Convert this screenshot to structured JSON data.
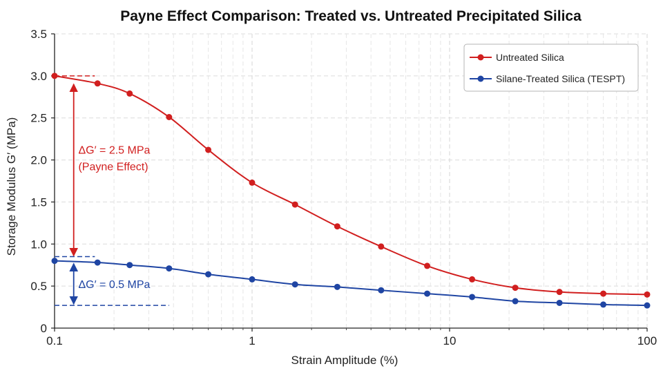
{
  "chart_data": {
    "type": "line",
    "title": "Payne Effect Comparison: Treated vs. Untreated Precipitated Silica",
    "xlabel": "Strain Amplitude (%)",
    "ylabel": "Storage Modulus G′ (MPa)",
    "x_scale": "log",
    "xlim": [
      0.1,
      100
    ],
    "ylim": [
      0,
      3.5
    ],
    "x_ticks": [
      0.1,
      1,
      10,
      100
    ],
    "x_tick_labels": [
      "0.1",
      "1",
      "10",
      "100"
    ],
    "y_ticks": [
      0,
      0.5,
      1.0,
      1.5,
      2.0,
      2.5,
      3.0,
      3.5
    ],
    "y_tick_labels": [
      "0",
      "0.5",
      "1.0",
      "1.5",
      "2.0",
      "2.5",
      "3.0",
      "3.5"
    ],
    "grid": true,
    "legend_position": "top-right",
    "series": [
      {
        "name": "Untreated Silica",
        "color": "#d11f1f",
        "x": [
          0.1,
          0.165,
          0.24,
          0.38,
          0.6,
          1.0,
          1.65,
          2.7,
          4.5,
          7.7,
          13,
          21.5,
          36,
          60,
          100
        ],
        "y": [
          3.0,
          2.91,
          2.79,
          2.51,
          2.12,
          1.73,
          1.47,
          1.21,
          0.97,
          0.74,
          0.58,
          0.48,
          0.43,
          0.41,
          0.4
        ]
      },
      {
        "name": "Silane-Treated Silica (TESPT)",
        "color": "#1f45a3",
        "x": [
          0.1,
          0.165,
          0.24,
          0.38,
          0.6,
          1.0,
          1.65,
          2.7,
          4.5,
          7.7,
          13,
          21.5,
          36,
          60,
          100
        ],
        "y": [
          0.8,
          0.78,
          0.75,
          0.71,
          0.64,
          0.58,
          0.52,
          0.49,
          0.45,
          0.41,
          0.37,
          0.32,
          0.3,
          0.28,
          0.27
        ]
      }
    ],
    "annotations": [
      {
        "text_line1": "ΔG′ = 2.5 MPa",
        "text_line2": "(Payne Effect)",
        "color": "#d11f1f",
        "arrow_x": 0.125,
        "arrow_y_from": 3.0,
        "arrow_y_to": 0.86,
        "ref_line_y": 3.0,
        "ref_line_x_end": 0.16,
        "text_x": 0.132,
        "text_y": 2.0
      },
      {
        "text_line1": "ΔG′ = 0.5 MPa",
        "color": "#1f45a3",
        "arrow_x": 0.125,
        "arrow_y_from": 0.8,
        "arrow_y_to": 0.27,
        "ref_line_y_top": 0.85,
        "ref_line_top_x_end": 0.16,
        "ref_line_y_bottom": 0.27,
        "ref_line_bottom_x_end": 0.38,
        "text_x": 0.132,
        "text_y": 0.5
      }
    ]
  }
}
